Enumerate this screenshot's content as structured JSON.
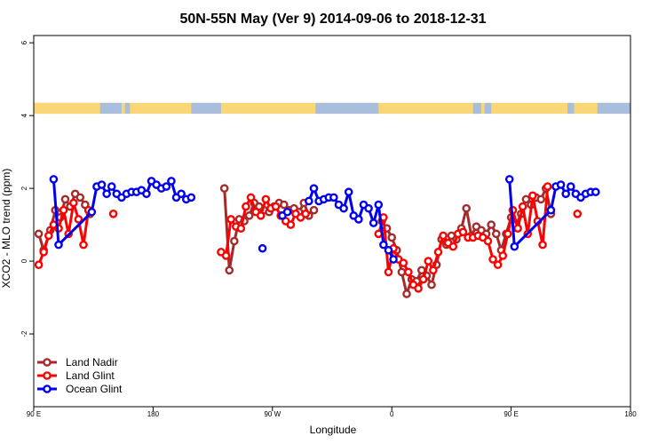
{
  "chart_data": {
    "type": "line",
    "title": "50N-55N May (Ver 9)   2014-09-06 to 2018-12-31",
    "xlabel": "Longitude",
    "ylabel": "XCO2 - MLO trend (ppm)",
    "xlim": [
      0,
      360
    ],
    "ylim": [
      -4,
      6.2
    ],
    "x_ticks": [
      {
        "value": 0,
        "label": "90 E"
      },
      {
        "value": 72,
        "label": "180"
      },
      {
        "value": 144,
        "label": "90 W"
      },
      {
        "value": 216,
        "label": "0"
      },
      {
        "value": 288,
        "label": "90 E"
      },
      {
        "value": 360,
        "label": "180"
      }
    ],
    "y_ticks": [
      {
        "value": -2,
        "label": "-2"
      },
      {
        "value": 0,
        "label": "0"
      },
      {
        "value": 2,
        "label": "2"
      },
      {
        "value": 4,
        "label": "4"
      },
      {
        "value": 6,
        "label": "6"
      }
    ],
    "grid": false,
    "legend_position": "bottom-left",
    "land_mask_band": {
      "y_range": [
        4.05,
        4.35
      ],
      "land_color": "#f9d776",
      "ocean_color": "#a8bedc",
      "ocean_spans": [
        [
          49,
          53
        ],
        [
          55,
          58
        ],
        [
          265,
          270
        ],
        [
          272,
          276
        ],
        [
          322,
          326
        ]
      ]
    },
    "series": [
      {
        "name": "Land Nadir",
        "color": "#a52a2a",
        "segments": [
          [
            [
              3,
              0.75
            ],
            [
              6,
              0.3
            ],
            [
              10,
              0.85
            ],
            [
              13,
              1.4
            ],
            [
              16,
              1.2
            ],
            [
              19,
              1.7
            ],
            [
              22,
              1.5
            ],
            [
              25,
              1.85
            ],
            [
              28,
              1.75
            ],
            [
              31,
              1.55
            ],
            [
              34,
              1.3
            ]
          ],
          [
            [
              115,
              2.0
            ],
            [
              118,
              -0.25
            ],
            [
              121,
              0.55
            ],
            [
              124,
              1.15
            ],
            [
              127,
              1.1
            ],
            [
              130,
              1.25
            ],
            [
              133,
              1.6
            ],
            [
              136,
              1.5
            ],
            [
              139,
              1.4
            ],
            [
              142,
              1.35
            ],
            [
              145,
              1.5
            ],
            [
              148,
              1.6
            ],
            [
              151,
              1.55
            ],
            [
              154,
              1.4
            ],
            [
              157,
              1.45
            ],
            [
              160,
              1.35
            ],
            [
              163,
              1.6
            ],
            [
              166,
              1.25
            ],
            [
              169,
              1.4
            ]
          ],
          [
            [
              210,
              1.1
            ],
            [
              213,
              0.9
            ],
            [
              216,
              0.65
            ],
            [
              219,
              0.3
            ],
            [
              222,
              -0.3
            ],
            [
              225,
              -0.9
            ],
            [
              228,
              -0.5
            ],
            [
              231,
              -0.55
            ],
            [
              234,
              -0.25
            ],
            [
              237,
              -0.4
            ],
            [
              240,
              -0.65
            ],
            [
              243,
              -0.1
            ],
            [
              246,
              0.6
            ],
            [
              249,
              0.45
            ],
            [
              252,
              0.7
            ],
            [
              255,
              0.6
            ],
            [
              258,
              0.9
            ],
            [
              261,
              1.45
            ],
            [
              264,
              0.7
            ],
            [
              267,
              0.95
            ],
            [
              270,
              0.85
            ],
            [
              273,
              0.75
            ],
            [
              276,
              1.0
            ],
            [
              279,
              0.75
            ],
            [
              282,
              0.3
            ],
            [
              285,
              0.75
            ],
            [
              288,
              1.2
            ],
            [
              291,
              1.0
            ],
            [
              294,
              1.3
            ],
            [
              297,
              1.7
            ],
            [
              300,
              1.55
            ],
            [
              303,
              1.75
            ],
            [
              306,
              1.7
            ],
            [
              309,
              2.0
            ],
            [
              312,
              1.3
            ]
          ]
        ]
      },
      {
        "name": "Land Glint",
        "color": "#ff0000",
        "segments": [
          [
            [
              3,
              -0.1
            ],
            [
              6,
              0.25
            ],
            [
              9,
              0.7
            ],
            [
              12,
              1.0
            ],
            [
              15,
              0.9
            ],
            [
              18,
              1.4
            ],
            [
              21,
              0.75
            ],
            [
              24,
              1.6
            ],
            [
              27,
              1.15
            ],
            [
              30,
              0.45
            ],
            [
              33,
              1.4
            ]
          ],
          [
            [
              48,
              1.3
            ]
          ],
          [
            [
              113,
              0.25
            ],
            [
              116,
              0.15
            ],
            [
              119,
              1.15
            ],
            [
              122,
              0.95
            ],
            [
              125,
              0.9
            ],
            [
              128,
              1.5
            ],
            [
              131,
              1.75
            ],
            [
              134,
              1.35
            ],
            [
              137,
              1.25
            ],
            [
              140,
              1.7
            ],
            [
              143,
              1.45
            ],
            [
              146,
              1.5
            ],
            [
              149,
              1.25
            ],
            [
              152,
              1.1
            ],
            [
              155,
              1.0
            ],
            [
              158,
              1.3
            ],
            [
              161,
              1.2
            ],
            [
              164,
              1.3
            ]
          ],
          [
            [
              208,
              0.75
            ],
            [
              211,
              1.2
            ],
            [
              214,
              -0.3
            ],
            [
              217,
              0.35
            ],
            [
              220,
              0.05
            ],
            [
              223,
              -0.05
            ],
            [
              226,
              -0.3
            ],
            [
              229,
              -0.65
            ],
            [
              232,
              -0.75
            ],
            [
              235,
              -0.5
            ],
            [
              238,
              0.0
            ],
            [
              241,
              -0.25
            ],
            [
              244,
              0.25
            ],
            [
              247,
              0.7
            ],
            [
              250,
              0.5
            ],
            [
              253,
              0.4
            ],
            [
              256,
              0.75
            ],
            [
              259,
              0.8
            ],
            [
              262,
              0.65
            ],
            [
              265,
              0.65
            ],
            [
              268,
              0.7
            ],
            [
              271,
              0.65
            ],
            [
              274,
              0.55
            ],
            [
              277,
              0.05
            ],
            [
              280,
              -0.1
            ],
            [
              283,
              0.15
            ],
            [
              286,
              0.75
            ],
            [
              289,
              1.4
            ],
            [
              292,
              0.9
            ],
            [
              295,
              1.5
            ],
            [
              298,
              0.75
            ],
            [
              301,
              1.8
            ],
            [
              304,
              1.1
            ],
            [
              307,
              0.45
            ],
            [
              310,
              2.05
            ]
          ],
          [
            [
              328,
              1.3
            ]
          ]
        ]
      },
      {
        "name": "Ocean Glint",
        "color": "#0000ee",
        "segments": [
          [
            [
              12,
              2.25
            ],
            [
              15,
              0.45
            ],
            [
              35,
              1.35
            ],
            [
              38,
              2.05
            ],
            [
              41,
              2.1
            ],
            [
              44,
              1.85
            ],
            [
              47,
              2.05
            ],
            [
              50,
              1.85
            ],
            [
              53,
              1.75
            ],
            [
              56,
              1.85
            ],
            [
              59,
              1.9
            ],
            [
              62,
              1.9
            ],
            [
              65,
              1.95
            ],
            [
              68,
              1.85
            ],
            [
              71,
              2.2
            ],
            [
              74,
              2.1
            ],
            [
              77,
              2.0
            ],
            [
              80,
              2.05
            ],
            [
              83,
              2.2
            ],
            [
              86,
              1.75
            ],
            [
              89,
              1.85
            ],
            [
              92,
              1.7
            ],
            [
              95,
              1.75
            ]
          ],
          [
            [
              138,
              0.35
            ]
          ],
          [
            [
              150,
              1.25
            ],
            [
              153,
              1.35
            ]
          ],
          [
            [
              166,
              1.65
            ],
            [
              169,
              2.0
            ],
            [
              172,
              1.65
            ],
            [
              175,
              1.7
            ],
            [
              178,
              1.75
            ],
            [
              181,
              1.75
            ],
            [
              184,
              1.55
            ],
            [
              187,
              1.45
            ],
            [
              190,
              1.9
            ],
            [
              193,
              1.25
            ],
            [
              196,
              1.15
            ],
            [
              199,
              1.55
            ],
            [
              202,
              1.45
            ],
            [
              205,
              1.05
            ],
            [
              208,
              1.55
            ],
            [
              211,
              0.45
            ],
            [
              214,
              0.3
            ],
            [
              217,
              0.05
            ]
          ],
          [
            [
              287,
              2.25
            ],
            [
              290,
              0.4
            ],
            [
              312,
              1.4
            ],
            [
              315,
              2.05
            ],
            [
              318,
              2.1
            ],
            [
              321,
              1.85
            ],
            [
              324,
              2.05
            ],
            [
              327,
              1.85
            ],
            [
              330,
              1.75
            ],
            [
              333,
              1.85
            ],
            [
              336,
              1.9
            ],
            [
              339,
              1.9
            ]
          ]
        ]
      }
    ]
  }
}
